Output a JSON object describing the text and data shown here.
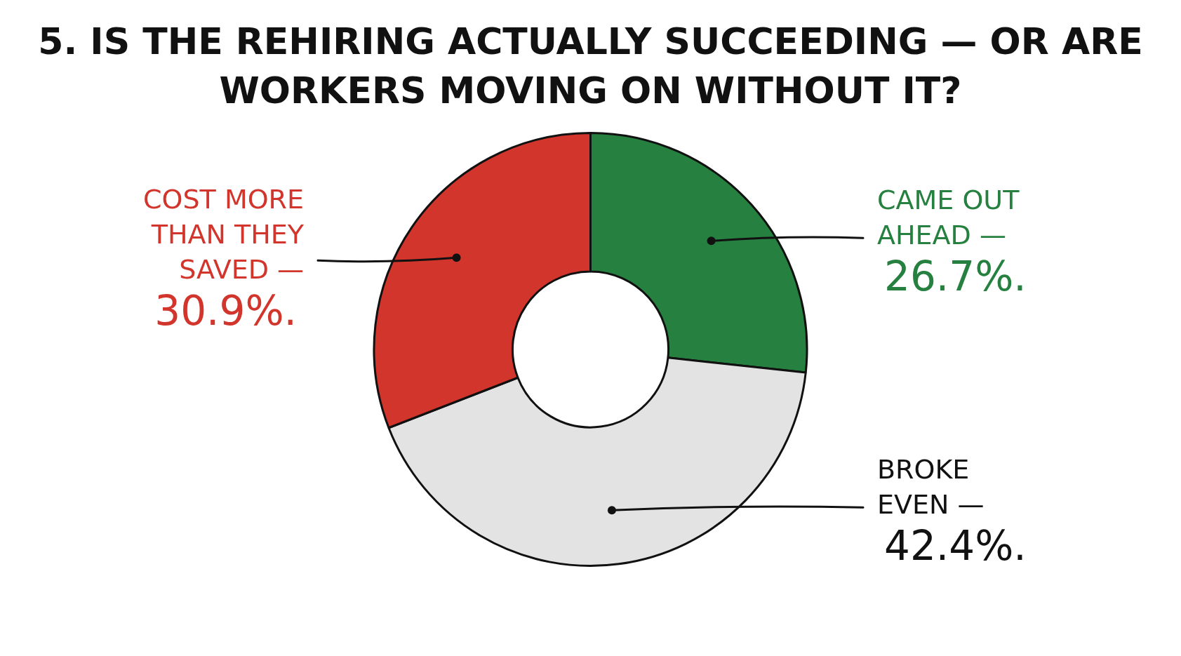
{
  "chart_data": {
    "type": "donut",
    "title": "5. IS THE REHIRING ACTUALLY SUCCEEDING — OR ARE WORKERS MOVING ON WITHOUT IT?",
    "categories": [
      "CAME OUT AHEAD —",
      "BROKE EVEN —",
      "COST MORE THAN THEY SAVED —"
    ],
    "values": [
      26.7,
      42.4,
      30.9
    ],
    "colors": [
      "#26803f",
      "#e3e3e3",
      "#d2352c"
    ],
    "value_labels": [
      "26.7%.",
      "42.4%.",
      "30.9%."
    ]
  }
}
